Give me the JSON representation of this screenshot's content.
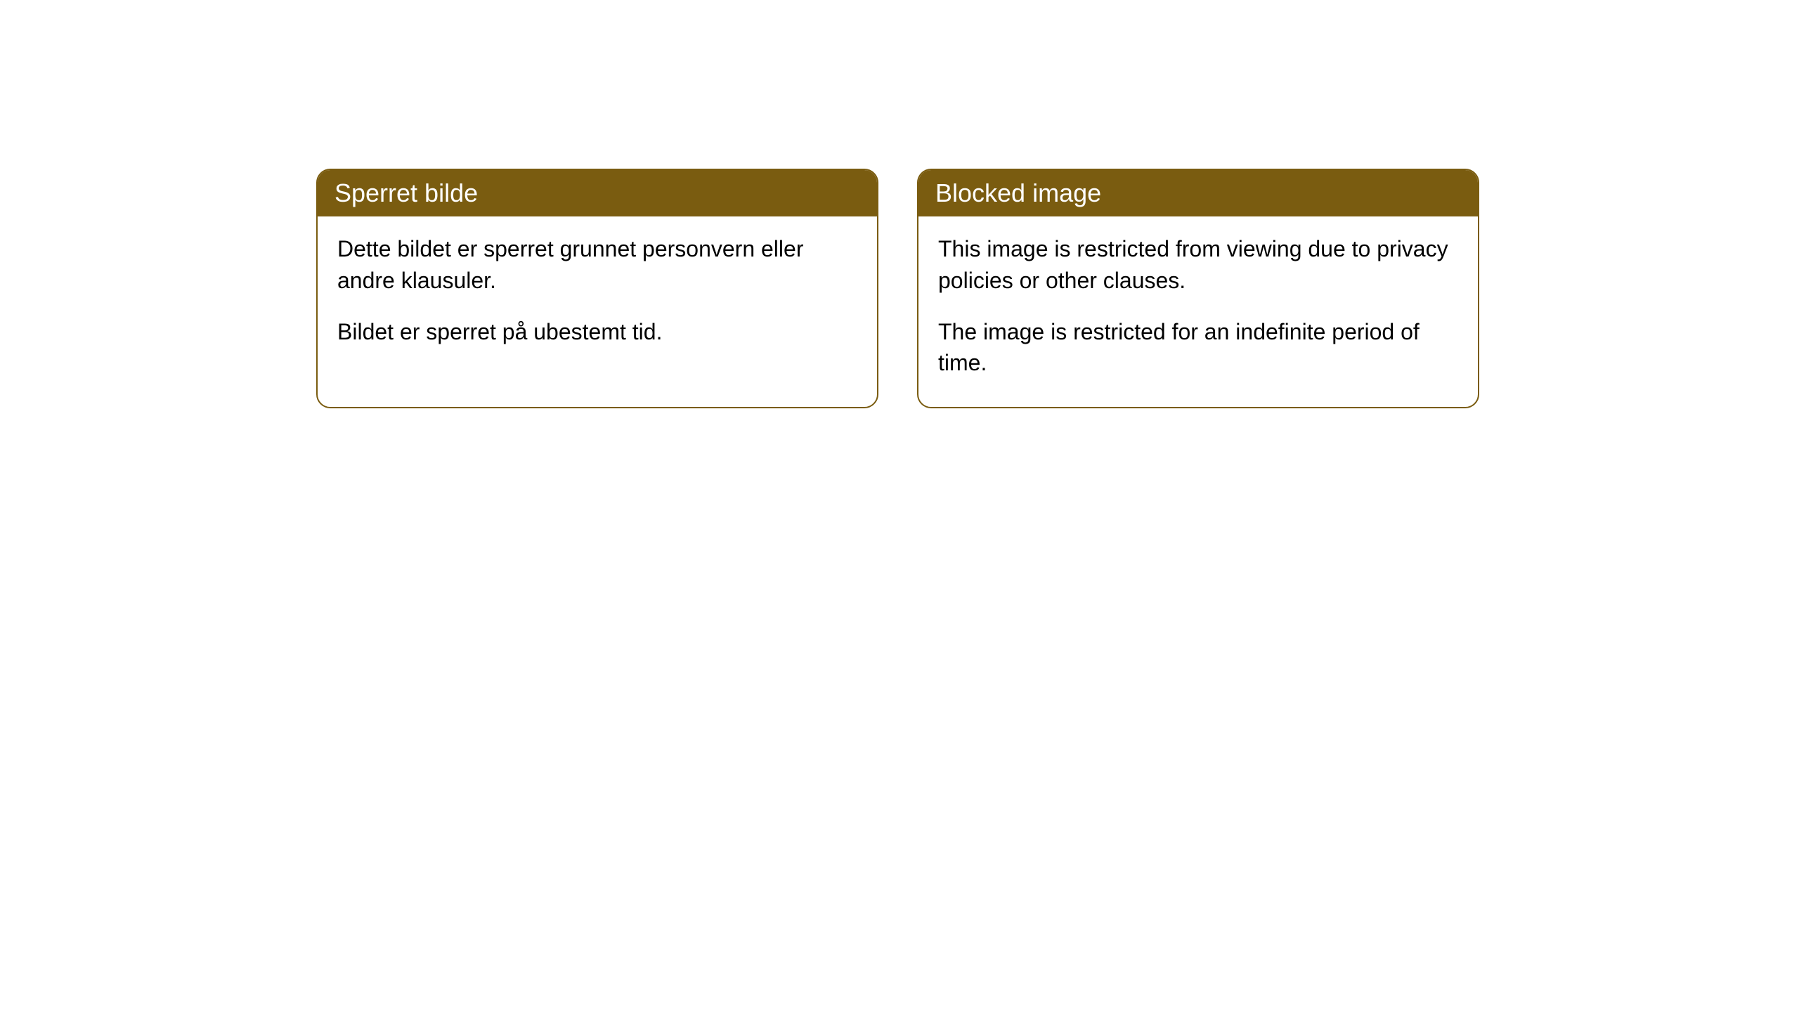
{
  "cards": [
    {
      "title": "Sperret bilde",
      "paragraph1": "Dette bildet er sperret grunnet personvern eller andre klausuler.",
      "paragraph2": "Bildet er sperret på ubestemt tid."
    },
    {
      "title": "Blocked image",
      "paragraph1": "This image is restricted from viewing due to privacy policies or other clauses.",
      "paragraph2": "The image is restricted for an indefinite period of time."
    }
  ],
  "style": {
    "header_background": "#7a5c10",
    "header_text_color": "#ffffff",
    "border_color": "#7a5c10",
    "body_background": "#ffffff",
    "body_text_color": "#000000",
    "border_radius": 20,
    "header_fontsize": 36,
    "body_fontsize": 32
  }
}
